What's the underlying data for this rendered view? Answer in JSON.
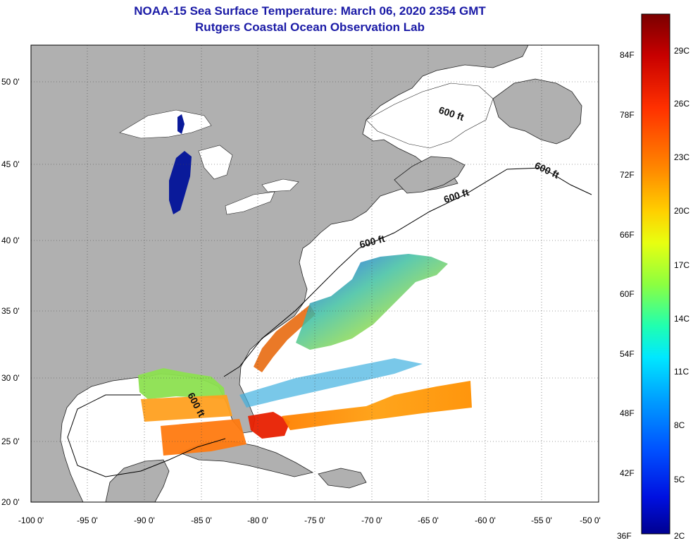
{
  "header": {
    "title": "NOAA-15 Sea Surface Temperature:  March 06, 2020 2354 GMT",
    "subtitle": "Rutgers Coastal Ocean Observation Lab"
  },
  "axes": {
    "lat_labels": [
      "20 0'",
      "25 0'",
      "30 0'",
      "35 0'",
      "40 0'",
      "45 0'",
      "50 0'"
    ],
    "lon_labels": [
      "-100 0'",
      "-95 0'",
      "-90 0'",
      "-85 0'",
      "-80 0'",
      "-75 0'",
      "-70 0'",
      "-65 0'",
      "-60 0'",
      "-55 0'",
      "-50 0'"
    ]
  },
  "contour_label": "600 ft",
  "colorbar": {
    "fahrenheit_labels": [
      "84F",
      "78F",
      "72F",
      "66F",
      "60F",
      "54F",
      "48F",
      "42F",
      "36F"
    ],
    "celsius_labels": [
      "29C",
      "26C",
      "23C",
      "20C",
      "17C",
      "14C",
      "11C",
      "8C",
      "5C",
      "2C"
    ],
    "colors": [
      "#7a0000",
      "#c80000",
      "#ff3000",
      "#ff8a00",
      "#ffd000",
      "#e8ff10",
      "#8cff40",
      "#20ffb0",
      "#00e8ff",
      "#00a0ff",
      "#0050ff",
      "#0010e0",
      "#000090"
    ]
  },
  "map_colors": {
    "land": "#b0b0b0",
    "ocean": "#ffffff",
    "lakes": "#0a1a9a"
  }
}
